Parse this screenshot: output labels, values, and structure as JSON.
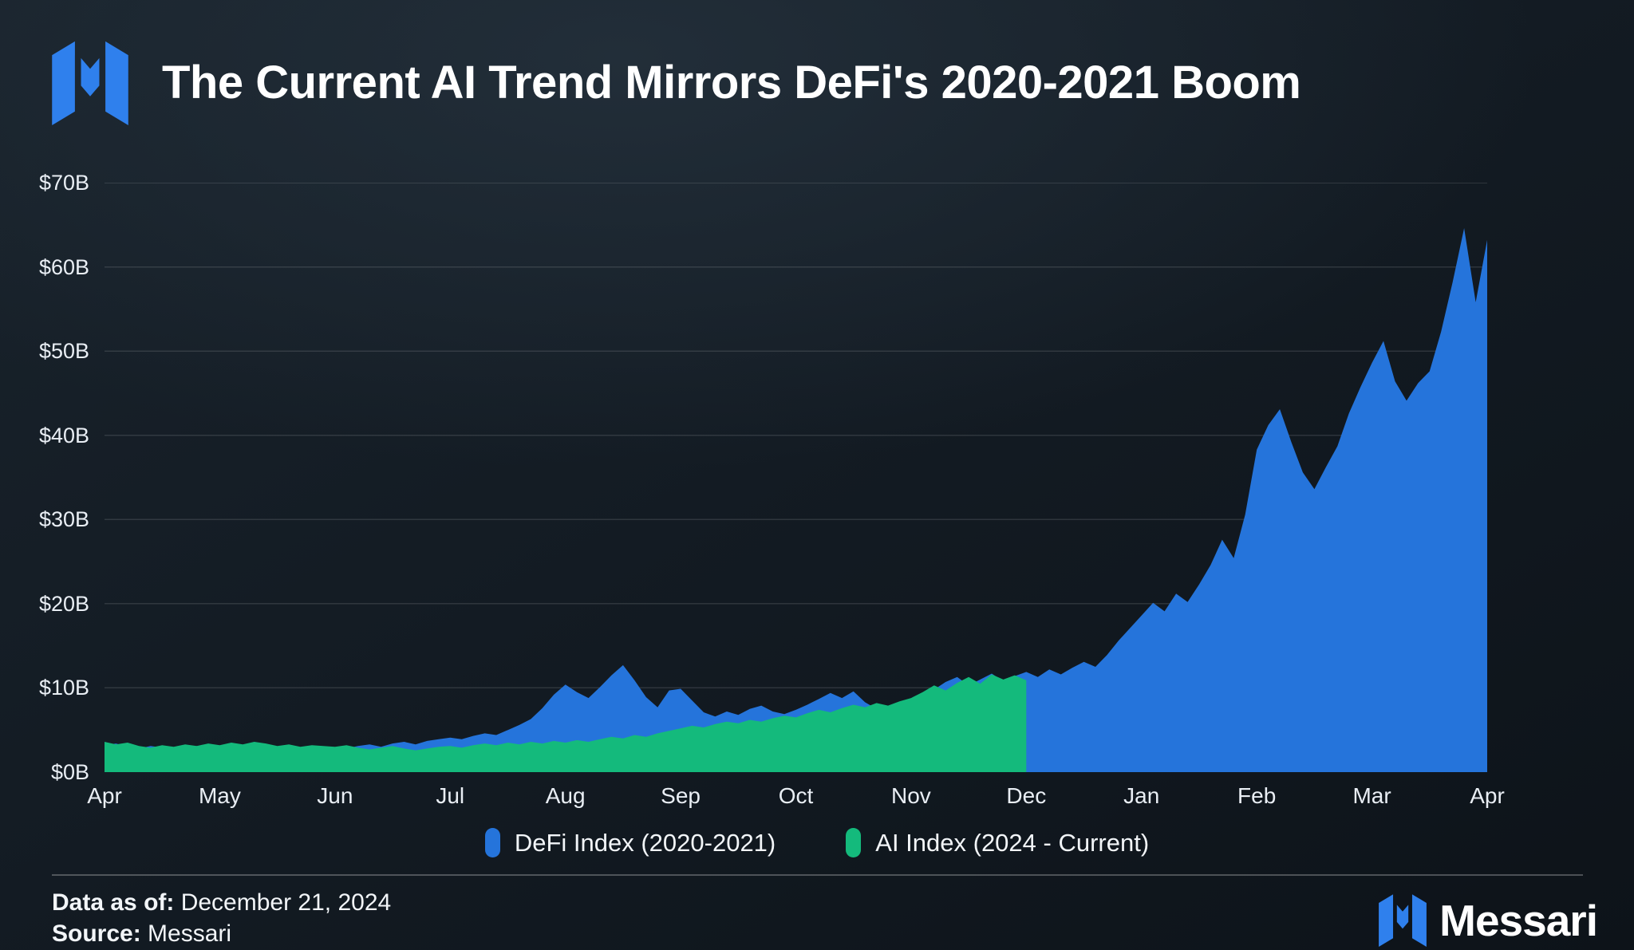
{
  "header": {
    "title": "The Current AI Trend Mirrors DeFi's 2020-2021 Boom"
  },
  "brand": {
    "logo_color": "#2F80ED",
    "wordmark": "Messari"
  },
  "colors": {
    "background_top": "#19232C",
    "background_bottom": "#0D1319",
    "grid": "rgba(255,255,255,0.12)",
    "axis_text": "#E9EEF4",
    "defi_blue": "#2574DB",
    "ai_green": "#14BA7C"
  },
  "footer": {
    "data_as_of_label": "Data as of:",
    "data_as_of_value": " December 21, 2024",
    "source_label": "Source:",
    "source_value": " Messari",
    "brand": "Messari"
  },
  "chart_data": {
    "type": "area",
    "title": "The Current AI Trend Mirrors DeFi's 2020-2021 Boom",
    "xlabel": "",
    "ylabel": "",
    "ylim": [
      0,
      70
    ],
    "x_range": [
      0,
      12
    ],
    "grid": true,
    "legend_position": "bottom",
    "y_ticks": [
      {
        "label": "$0B",
        "value": 0
      },
      {
        "label": "$10B",
        "value": 10
      },
      {
        "label": "$20B",
        "value": 20
      },
      {
        "label": "$30B",
        "value": 30
      },
      {
        "label": "$40B",
        "value": 40
      },
      {
        "label": "$50B",
        "value": 50
      },
      {
        "label": "$60B",
        "value": 60
      },
      {
        "label": "$70B",
        "value": 70
      }
    ],
    "x_ticks": [
      "Apr",
      "May",
      "Jun",
      "Jul",
      "Aug",
      "Sep",
      "Oct",
      "Nov",
      "Dec",
      "Jan",
      "Feb",
      "Mar",
      "Apr"
    ],
    "units": "billions USD",
    "series": [
      {
        "name": "DeFi Index (2020-2021)",
        "color": "#2574DB",
        "x0": 0,
        "dx": 0.1,
        "values": [
          3.2,
          3.4,
          3.0,
          2.8,
          3.1,
          2.9,
          2.7,
          2.9,
          3.1,
          2.9,
          2.8,
          3.0,
          3.2,
          2.9,
          2.7,
          2.8,
          3.0,
          2.9,
          2.8,
          2.7,
          2.6,
          2.8,
          3.1,
          3.3,
          3.0,
          3.4,
          3.6,
          3.3,
          3.7,
          3.9,
          4.1,
          3.9,
          4.3,
          4.6,
          4.4,
          5.0,
          5.6,
          6.3,
          7.6,
          9.2,
          10.4,
          9.5,
          8.8,
          10.1,
          11.5,
          12.7,
          10.9,
          8.9,
          7.7,
          9.7,
          9.9,
          8.5,
          7.1,
          6.6,
          7.2,
          6.8,
          7.5,
          7.9,
          7.2,
          6.9,
          7.4,
          8.0,
          8.7,
          9.4,
          8.8,
          9.6,
          8.3,
          7.5,
          7.1,
          7.9,
          8.4,
          9.0,
          9.8,
          10.7,
          11.3,
          10.3,
          11.0,
          11.7,
          10.8,
          11.4,
          11.9,
          11.3,
          12.2,
          11.6,
          12.4,
          13.1,
          12.5,
          13.9,
          15.6,
          17.1,
          18.6,
          20.1,
          19.1,
          21.2,
          20.2,
          22.3,
          24.6,
          27.6,
          25.4,
          30.6,
          38.3,
          41.2,
          43.1,
          39.2,
          35.6,
          33.6,
          36.2,
          38.7,
          42.6,
          45.7,
          48.6,
          51.2,
          46.4,
          44.1,
          46.2,
          47.6,
          52.3,
          58.2,
          64.6,
          55.8,
          63.2
        ]
      },
      {
        "name": "AI Index (2024 - Current)",
        "color": "#14BA7C",
        "x0": 0,
        "dx": 0.1,
        "values": [
          3.6,
          3.3,
          3.5,
          3.1,
          2.9,
          3.2,
          3.0,
          3.3,
          3.1,
          3.4,
          3.2,
          3.5,
          3.3,
          3.6,
          3.4,
          3.1,
          3.3,
          3.0,
          3.2,
          3.1,
          3.0,
          3.2,
          2.9,
          2.7,
          2.9,
          3.1,
          2.8,
          2.6,
          2.8,
          3.0,
          3.1,
          2.9,
          3.2,
          3.4,
          3.2,
          3.5,
          3.3,
          3.6,
          3.4,
          3.7,
          3.5,
          3.8,
          3.6,
          3.9,
          4.2,
          4.0,
          4.4,
          4.2,
          4.6,
          4.9,
          5.2,
          5.5,
          5.3,
          5.7,
          6.0,
          5.8,
          6.2,
          6.0,
          6.4,
          6.7,
          6.5,
          7.0,
          7.4,
          7.1,
          7.6,
          8.0,
          7.7,
          8.2,
          7.9,
          8.4,
          8.8,
          9.5,
          10.3,
          9.7,
          10.6,
          11.3,
          10.5,
          11.6,
          11.0,
          11.5,
          10.9
        ]
      }
    ]
  }
}
